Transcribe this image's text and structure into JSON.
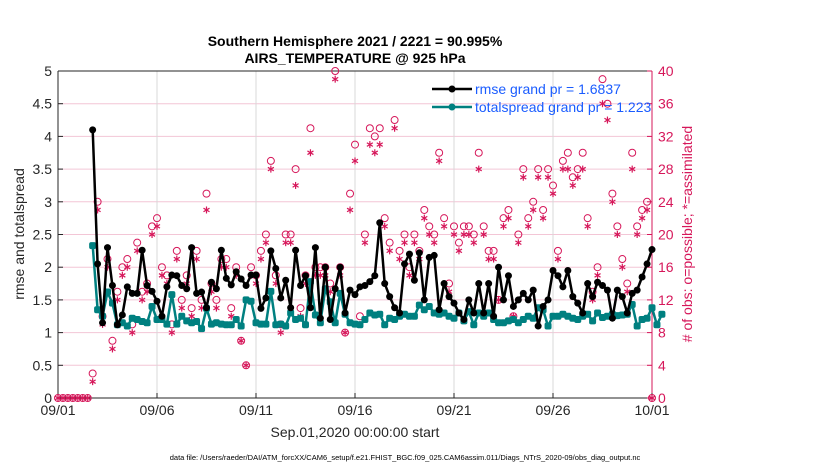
{
  "chart_data": {
    "type": "line",
    "title": [
      "Southern Hemisphere 2021 / 2221 = 90.995%",
      "AIRS_TEMPERATURE @ 925 hPa"
    ],
    "xlabel": "Sep.01,2020 00:00:00 start",
    "ylabel": "rmse and totalspread",
    "ylabel_right": "# of obs: o=possible; *=assimilated",
    "footer": "data file: /Users/raeder/DAI/ATM_forcXX/CAM6_setup/f.e21.FHIST_BGC.f09_025.CAM6assim.011/Diags_NTrS_2020-09/obs_diag_output.nc",
    "x_start_day": 0,
    "x_step_days": 0.25,
    "xlim_days": [
      0,
      30
    ],
    "xticks": [
      {
        "day": 0,
        "label": "09/01"
      },
      {
        "day": 5,
        "label": "09/06"
      },
      {
        "day": 10,
        "label": "09/11"
      },
      {
        "day": 15,
        "label": "09/16"
      },
      {
        "day": 20,
        "label": "09/21"
      },
      {
        "day": 25,
        "label": "09/26"
      },
      {
        "day": 30,
        "label": "10/01"
      }
    ],
    "ylim": [
      0,
      5
    ],
    "yticks": [
      "0",
      "0.5",
      "1",
      "1.5",
      "2",
      "2.5",
      "3",
      "3.5",
      "4",
      "4.5",
      "5"
    ],
    "ylim_right": [
      0,
      40
    ],
    "yticks_right": [
      "0",
      "4",
      "8",
      "12",
      "16",
      "20",
      "24",
      "28",
      "32",
      "36",
      "40"
    ],
    "grid": true,
    "legend_position": "top-right",
    "colors": {
      "rmse": "#000000",
      "spread": "#008080",
      "obs": "#d6175a",
      "legend_text": "#1a5cff"
    },
    "series": [
      {
        "name": "rmse grand pr = 1.6837",
        "key": "rmse",
        "values": [
          null,
          null,
          null,
          null,
          null,
          null,
          null,
          4.1,
          2.05,
          1.15,
          2.3,
          1.72,
          1.12,
          1.27,
          1.7,
          1.6,
          1.6,
          2.26,
          1.72,
          1.63,
          1.48,
          1.25,
          1.7,
          1.88,
          1.87,
          1.72,
          1.67,
          2.3,
          1.6,
          1.62,
          1.38,
          1.77,
          1.67,
          2.26,
          1.83,
          1.73,
          1.93,
          1.82,
          1.72,
          1.88,
          1.88,
          1.37,
          1.53,
          2.25,
          1.98,
          1.53,
          1.8,
          1.38,
          2.26,
          1.72,
          1.87,
          1.38,
          2.3,
          1.22,
          2.0,
          1.2,
          1.67,
          2.0,
          1.3,
          1.65,
          1.58,
          1.7,
          1.72,
          1.78,
          1.87,
          2.68,
          1.75,
          1.55,
          1.38,
          1.3,
          2.05,
          2.2,
          1.8,
          2.22,
          1.5,
          2.15,
          2.18,
          1.35,
          1.75,
          1.55,
          1.45,
          1.3,
          1.2,
          1.5,
          1.3,
          1.75,
          1.3,
          1.75,
          1.25,
          2.0,
          1.5,
          1.87,
          1.4,
          1.5,
          1.6,
          1.5,
          1.65,
          1.1,
          1.4,
          1.5,
          1.95,
          1.87,
          1.7,
          1.95,
          1.55,
          1.45,
          1.3,
          1.75,
          1.55,
          1.77,
          1.72,
          1.65,
          1.22,
          1.65,
          1.55,
          1.3,
          1.6,
          1.65,
          1.85,
          2.05,
          2.27,
          null
        ]
      },
      {
        "name": "totalspread grand pr = 1.223",
        "key": "spread",
        "values": [
          null,
          null,
          null,
          null,
          null,
          null,
          null,
          2.33,
          1.35,
          1.25,
          1.62,
          1.45,
          1.12,
          1.15,
          1.1,
          1.22,
          1.2,
          1.17,
          1.15,
          1.4,
          1.2,
          1.2,
          1.13,
          1.58,
          1.13,
          1.25,
          1.18,
          1.15,
          1.17,
          1.06,
          1.37,
          1.13,
          1.15,
          1.13,
          1.12,
          1.12,
          1.2,
          1.1,
          1.5,
          1.48,
          1.15,
          1.13,
          1.13,
          1.63,
          1.12,
          1.13,
          1.1,
          1.3,
          1.2,
          1.22,
          1.12,
          1.78,
          1.27,
          1.15,
          1.67,
          1.47,
          1.15,
          1.6,
          1.28,
          1.15,
          1.13,
          1.12,
          1.2,
          1.3,
          1.27,
          1.28,
          1.12,
          1.22,
          1.2,
          1.25,
          1.28,
          1.25,
          1.25,
          1.42,
          1.35,
          1.4,
          1.3,
          1.28,
          1.3,
          1.25,
          1.22,
          1.3,
          1.18,
          1.32,
          1.12,
          1.3,
          1.25,
          1.3,
          1.2,
          1.15,
          1.15,
          1.18,
          1.2,
          1.15,
          1.2,
          1.25,
          1.22,
          1.38,
          1.35,
          1.1,
          1.25,
          1.25,
          1.28,
          1.25,
          1.22,
          1.2,
          1.25,
          1.28,
          1.18,
          1.3,
          1.23,
          1.25,
          1.28,
          1.26,
          1.27,
          1.28,
          1.43,
          1.1,
          1.2,
          1.22,
          1.38,
          1.12,
          1.28,
          null
        ]
      },
      {
        "name": "possible",
        "key": "possible",
        "axis": "right",
        "marker": "o",
        "values": [
          0,
          0,
          0,
          0,
          0,
          0,
          0,
          3,
          24,
          10,
          17,
          7,
          13,
          16,
          17,
          9,
          19,
          13,
          14,
          21,
          22,
          16,
          15,
          9,
          18,
          12,
          15,
          11,
          18,
          12,
          25,
          14,
          12,
          17,
          17,
          11,
          16,
          7,
          4,
          16,
          15,
          18,
          20,
          29,
          15,
          9,
          20,
          20,
          28,
          11,
          15,
          33,
          16,
          16,
          16,
          14,
          40,
          16,
          8,
          25,
          31,
          10,
          20,
          33,
          32,
          33,
          22,
          19,
          34,
          18,
          20,
          16,
          20,
          18,
          23,
          21,
          20,
          30,
          22,
          14,
          21,
          19,
          21,
          21,
          20,
          30,
          21,
          18,
          18,
          12,
          22,
          23,
          10,
          20,
          28,
          22,
          24,
          28,
          23,
          28,
          26,
          18,
          29,
          30,
          27,
          28,
          30,
          22,
          13,
          16,
          39,
          36,
          25,
          21,
          17,
          14,
          30,
          21,
          23,
          24,
          0
        ]
      },
      {
        "name": "assimilated",
        "key": "assimilated",
        "axis": "right",
        "marker": "*",
        "values": [
          0,
          0,
          0,
          0,
          0,
          0,
          0,
          2,
          23,
          9,
          16,
          6,
          12,
          15,
          16,
          8,
          18,
          12,
          13,
          20,
          21,
          15,
          14,
          8,
          17,
          11,
          14,
          10,
          17,
          11,
          23,
          13,
          11,
          16,
          16,
          10,
          15,
          7,
          4,
          15,
          14,
          17,
          19,
          28,
          14,
          8,
          19,
          19,
          26,
          10,
          14,
          30,
          15,
          15,
          15,
          13,
          39,
          15,
          8,
          23,
          29,
          9,
          19,
          31,
          30,
          31,
          21,
          18,
          33,
          17,
          19,
          15,
          19,
          17,
          22,
          20,
          19,
          29,
          21,
          13,
          20,
          18,
          20,
          20,
          19,
          28,
          20,
          17,
          17,
          12,
          21,
          22,
          10,
          19,
          27,
          21,
          23,
          27,
          22,
          27,
          25,
          17,
          28,
          28,
          26,
          27,
          28,
          21,
          12,
          15,
          36,
          34,
          24,
          20,
          16,
          13,
          28,
          20,
          22,
          23,
          0
        ]
      }
    ]
  }
}
